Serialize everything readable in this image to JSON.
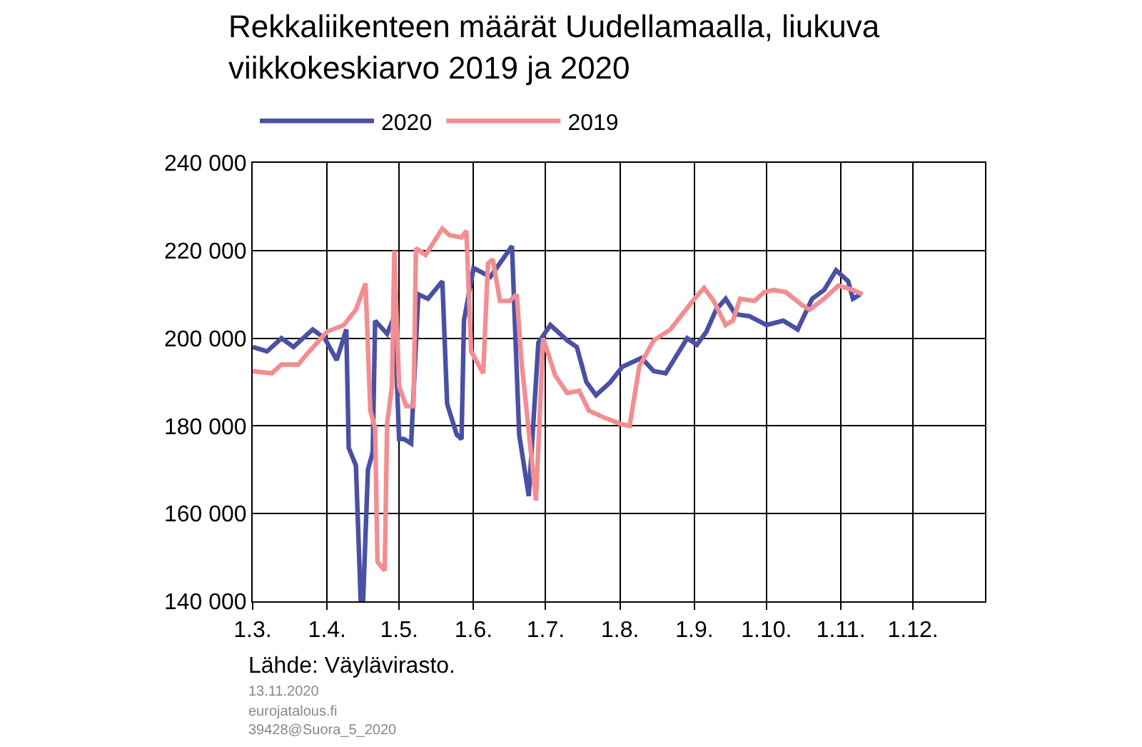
{
  "chart_data": {
    "type": "line",
    "title": "Rekkaliikenteen määrät Uudellamaalla, liukuva viikkokeskiarvo 2019 ja 2020",
    "series": [
      {
        "name": "2020",
        "color": "#4a50a3",
        "x": [
          "--03-01",
          "--03-07",
          "--03-13",
          "--03-18",
          "--03-26",
          "--03-31",
          "--04-05",
          "--04-09",
          "--04-10",
          "--04-13",
          "--04-15",
          "--04-16",
          "--04-18",
          "--04-20",
          "--04-21",
          "--04-26",
          "--04-29",
          "--05-01",
          "--05-03",
          "--05-06",
          "--05-09",
          "--05-13",
          "--05-19",
          "--05-21",
          "--05-25",
          "--05-27",
          "--05-28",
          "--06-01",
          "--06-08",
          "--06-17",
          "--06-20",
          "--06-24",
          "--06-28",
          "--07-03",
          "--07-10",
          "--07-14",
          "--07-18",
          "--07-22",
          "--07-28",
          "--08-02",
          "--08-10",
          "--08-15",
          "--08-20",
          "--08-29",
          "--09-02",
          "--09-06",
          "--09-10",
          "--09-14",
          "--09-18",
          "--09-24",
          "--10-01",
          "--10-08",
          "--10-14",
          "--10-20",
          "--10-25",
          "--10-30",
          "--11-04",
          "--11-06",
          "--11-09"
        ],
        "values": [
          198000,
          197000,
          200000,
          198000,
          202000,
          200000,
          195000,
          202000,
          175000,
          171000,
          140000,
          140000,
          170000,
          174000,
          204000,
          201000,
          205000,
          177000,
          177000,
          176000,
          210000,
          209000,
          213000,
          185000,
          178000,
          177000,
          204000,
          216000,
          214000,
          221000,
          178000,
          164000,
          199000,
          203000,
          199500,
          198000,
          190000,
          187000,
          190000,
          193500,
          195500,
          192500,
          192000,
          200000,
          198500,
          201500,
          206500,
          209000,
          205500,
          205000,
          203000,
          204000,
          202000,
          209000,
          211000,
          215500,
          213000,
          209000,
          210000
        ]
      },
      {
        "name": "2019",
        "color": "#f28e92",
        "x": [
          "--03-01",
          "--03-09",
          "--03-13",
          "--03-20",
          "--03-23",
          "--04-01",
          "--04-08",
          "--04-13",
          "--04-17",
          "--04-19",
          "--04-21",
          "--04-22",
          "--04-25",
          "--04-26",
          "--04-28",
          "--04-29",
          "--05-01",
          "--05-04",
          "--05-07",
          "--05-08",
          "--05-12",
          "--05-19",
          "--05-22",
          "--05-27",
          "--05-29",
          "--05-31",
          "--06-05",
          "--06-07",
          "--06-09",
          "--06-12",
          "--06-16",
          "--06-19",
          "--06-21",
          "--06-27",
          "--06-30",
          "--07-05",
          "--07-10",
          "--07-15",
          "--07-19",
          "--07-25",
          "--08-01",
          "--08-05",
          "--08-09",
          "--08-15",
          "--08-22",
          "--08-27",
          "--09-01",
          "--09-05",
          "--09-09",
          "--09-14",
          "--09-17",
          "--09-20",
          "--09-26",
          "--09-30",
          "--10-04",
          "--10-09",
          "--10-16",
          "--10-19",
          "--10-25",
          "--10-31",
          "--11-06",
          "--11-10"
        ],
        "values": [
          192500,
          192000,
          194000,
          194000,
          196000,
          201500,
          203000,
          206500,
          212500,
          183500,
          179500,
          149000,
          147000,
          180500,
          189000,
          220000,
          189000,
          184500,
          184500,
          220500,
          219000,
          225000,
          223500,
          223000,
          224500,
          197000,
          192000,
          217000,
          218000,
          208500,
          208500,
          210000,
          194500,
          163000,
          200000,
          191500,
          187500,
          188000,
          183500,
          182000,
          180500,
          180000,
          193500,
          199500,
          202000,
          205500,
          209000,
          211500,
          208500,
          203000,
          204000,
          209000,
          208500,
          210500,
          211000,
          210500,
          207500,
          206500,
          209000,
          212000,
          211000,
          210000
        ]
      }
    ],
    "xlim": [
      "--03-01",
      "--12-31"
    ],
    "xticks": [
      {
        "value": "--03-01",
        "label": "1.3."
      },
      {
        "value": "--04-01",
        "label": "1.4."
      },
      {
        "value": "--05-01",
        "label": "1.5."
      },
      {
        "value": "--06-01",
        "label": "1.6."
      },
      {
        "value": "--07-01",
        "label": "1.7."
      },
      {
        "value": "--08-01",
        "label": "1.8."
      },
      {
        "value": "--09-01",
        "label": "1.9."
      },
      {
        "value": "--10-01",
        "label": "1.10."
      },
      {
        "value": "--11-01",
        "label": "1.11."
      },
      {
        "value": "--12-01",
        "label": "1.12."
      }
    ],
    "ylim": [
      140000,
      240000
    ],
    "yticks": [
      {
        "value": 140000,
        "label": "140 000"
      },
      {
        "value": 160000,
        "label": "160 000"
      },
      {
        "value": 180000,
        "label": "180 000"
      },
      {
        "value": 200000,
        "label": "200 000"
      },
      {
        "value": 220000,
        "label": "220 000"
      },
      {
        "value": 240000,
        "label": "240 000"
      }
    ],
    "grid": true,
    "legend": "top left",
    "marker": "none",
    "line_style": "solid",
    "annotations": [
      "Lähde: Väylävirasto.",
      "13.11.2020",
      "eurojatalous.fi",
      "39428@Suora_5_2020"
    ]
  }
}
